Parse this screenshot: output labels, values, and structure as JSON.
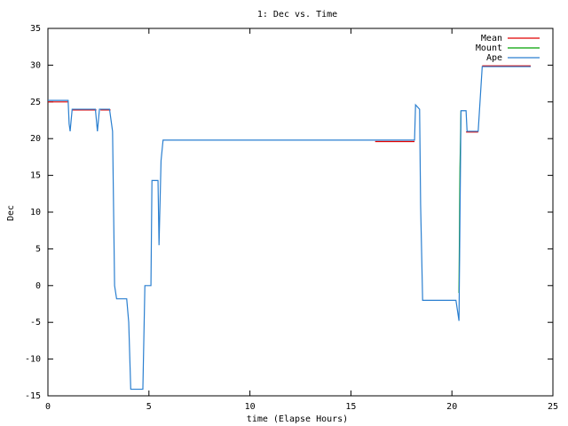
{
  "chart_data": {
    "type": "line",
    "title": "1: Dec vs. Time",
    "xlabel": "time (Elapse Hours)",
    "ylabel": "Dec",
    "xlim": [
      0,
      25
    ],
    "xticks": [
      0,
      5,
      10,
      15,
      20,
      25
    ],
    "ylim": [
      -15,
      35
    ],
    "yticks": [
      -15,
      -10,
      -5,
      0,
      5,
      10,
      15,
      20,
      25,
      30,
      35
    ],
    "grid": false,
    "legend": "top-right",
    "series": [
      {
        "name": "Mean",
        "color": "#e00000",
        "x": [
          0,
          1.0,
          1.05,
          1.2,
          2.4,
          2.5,
          2.6,
          3.1,
          3.2,
          16.2,
          18.15,
          18.2,
          20.7,
          21.3,
          21.4,
          21.5,
          23.9
        ],
        "values": [
          25,
          25,
          null,
          23.9,
          23.9,
          null,
          23.9,
          23.9,
          null,
          19.6,
          19.6,
          null,
          20.9,
          20.9,
          null,
          29.9,
          29.9
        ]
      },
      {
        "name": "Mount",
        "color": "#00a000",
        "x": [
          20.35,
          20.4,
          20.45
        ],
        "values": [
          -1,
          16,
          23.8
        ]
      },
      {
        "name": "Ape",
        "color": "#2a7fd0",
        "x": [
          0,
          1.0,
          1.05,
          1.1,
          1.2,
          2.35,
          2.45,
          2.55,
          2.65,
          3.05,
          3.15,
          3.2,
          3.3,
          3.4,
          3.9,
          4.0,
          4.1,
          4.7,
          4.8,
          5.1,
          5.15,
          5.45,
          5.5,
          5.6,
          5.7,
          18.15,
          18.2,
          18.4,
          18.45,
          18.55,
          20.0,
          20.2,
          20.35,
          20.45,
          20.7,
          20.75,
          21.3,
          21.5,
          23.9
        ],
        "values": [
          25.2,
          25.2,
          22,
          21,
          24,
          24,
          21,
          24,
          24,
          24,
          22,
          21,
          0,
          -1.8,
          -1.8,
          -5,
          -14.1,
          -14.1,
          0,
          0,
          14.3,
          14.3,
          5.5,
          17,
          19.8,
          19.8,
          24.6,
          24,
          11,
          -2,
          -2,
          -2,
          -4.8,
          23.8,
          23.8,
          21,
          21,
          29.8,
          29.8
        ]
      }
    ]
  }
}
